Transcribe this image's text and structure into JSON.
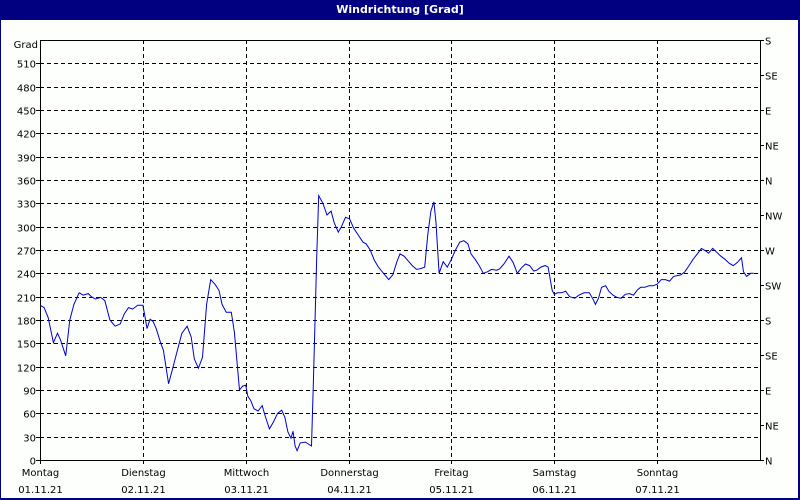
{
  "window": {
    "title": "Windrichtung [Grad]"
  },
  "colors": {
    "frame": "#000080",
    "background": "#fdfffd",
    "line": "#0000cc",
    "grid": "#000000",
    "axis": "#000000"
  },
  "chart_data": {
    "type": "line",
    "title": "Windrichtung [Grad]",
    "ylabel": "Grad",
    "xlabel": "",
    "ylim": [
      0,
      540
    ],
    "y_ticks": [
      0,
      30,
      60,
      90,
      120,
      150,
      180,
      210,
      240,
      270,
      300,
      330,
      360,
      390,
      420,
      450,
      480,
      510
    ],
    "y2_ticks": [
      {
        "value": 0,
        "label": "N"
      },
      {
        "value": 45,
        "label": "NE"
      },
      {
        "value": 90,
        "label": "E"
      },
      {
        "value": 135,
        "label": "SE"
      },
      {
        "value": 180,
        "label": "S"
      },
      {
        "value": 225,
        "label": "SW"
      },
      {
        "value": 270,
        "label": "W"
      },
      {
        "value": 315,
        "label": "NW"
      },
      {
        "value": 360,
        "label": "N"
      },
      {
        "value": 405,
        "label": "NE"
      },
      {
        "value": 450,
        "label": "E"
      },
      {
        "value": 495,
        "label": "SE"
      },
      {
        "value": 540,
        "label": "S"
      }
    ],
    "categories": [
      {
        "day": "Montag",
        "date": "01.11.21"
      },
      {
        "day": "Dienstag",
        "date": "02.11.21"
      },
      {
        "day": "Mittwoch",
        "date": "03.11.21"
      },
      {
        "day": "Donnerstag",
        "date": "04.11.21"
      },
      {
        "day": "Freitag",
        "date": "05.11.21"
      },
      {
        "day": "Samstag",
        "date": "06.11.21"
      },
      {
        "day": "Sonntag",
        "date": "07.11.21"
      }
    ],
    "grid": true,
    "legend": "none",
    "series": [
      {
        "name": "Windrichtung",
        "x_days": "fractional day index from Montag 00:00 (0..7)",
        "points": [
          [
            0.0,
            199
          ],
          [
            0.04,
            196
          ],
          [
            0.08,
            183
          ],
          [
            0.13,
            151
          ],
          [
            0.17,
            163
          ],
          [
            0.2,
            154
          ],
          [
            0.25,
            134
          ],
          [
            0.29,
            180
          ],
          [
            0.33,
            200
          ],
          [
            0.38,
            215
          ],
          [
            0.42,
            212
          ],
          [
            0.47,
            214
          ],
          [
            0.5,
            210
          ],
          [
            0.54,
            207
          ],
          [
            0.59,
            209
          ],
          [
            0.63,
            205
          ],
          [
            0.68,
            180
          ],
          [
            0.73,
            172
          ],
          [
            0.78,
            175
          ],
          [
            0.82,
            188
          ],
          [
            0.86,
            196
          ],
          [
            0.9,
            194
          ],
          [
            0.95,
            199
          ],
          [
            1.0,
            199
          ],
          [
            1.02,
            185
          ],
          [
            1.04,
            169
          ],
          [
            1.07,
            181
          ],
          [
            1.1,
            178
          ],
          [
            1.13,
            169
          ],
          [
            1.17,
            152
          ],
          [
            1.2,
            141
          ],
          [
            1.25,
            98
          ],
          [
            1.29,
            118
          ],
          [
            1.34,
            143
          ],
          [
            1.38,
            163
          ],
          [
            1.43,
            172
          ],
          [
            1.47,
            158
          ],
          [
            1.5,
            130
          ],
          [
            1.54,
            118
          ],
          [
            1.58,
            132
          ],
          [
            1.62,
            200
          ],
          [
            1.66,
            232
          ],
          [
            1.7,
            226
          ],
          [
            1.74,
            218
          ],
          [
            1.77,
            200
          ],
          [
            1.81,
            190
          ],
          [
            1.86,
            190
          ],
          [
            1.89,
            164
          ],
          [
            1.94,
            90
          ],
          [
            1.97,
            95
          ],
          [
            2.0,
            96
          ],
          [
            2.02,
            82
          ],
          [
            2.05,
            76
          ],
          [
            2.08,
            66
          ],
          [
            2.12,
            63
          ],
          [
            2.16,
            70
          ],
          [
            2.19,
            56
          ],
          [
            2.23,
            40
          ],
          [
            2.27,
            49
          ],
          [
            2.31,
            60
          ],
          [
            2.35,
            64
          ],
          [
            2.38,
            55
          ],
          [
            2.41,
            36
          ],
          [
            2.44,
            28
          ],
          [
            2.46,
            37
          ],
          [
            2.48,
            18
          ],
          [
            2.5,
            12
          ],
          [
            2.53,
            22
          ],
          [
            2.58,
            23
          ],
          [
            2.64,
            18
          ],
          [
            2.66,
            110
          ],
          [
            2.69,
            260
          ],
          [
            2.71,
            340
          ],
          [
            2.75,
            330
          ],
          [
            2.79,
            315
          ],
          [
            2.83,
            320
          ],
          [
            2.86,
            305
          ],
          [
            2.9,
            293
          ],
          [
            2.93,
            300
          ],
          [
            2.97,
            312
          ],
          [
            3.01,
            310
          ],
          [
            3.05,
            298
          ],
          [
            3.09,
            290
          ],
          [
            3.14,
            280
          ],
          [
            3.17,
            278
          ],
          [
            3.21,
            270
          ],
          [
            3.25,
            257
          ],
          [
            3.29,
            248
          ],
          [
            3.34,
            240
          ],
          [
            3.39,
            232
          ],
          [
            3.43,
            238
          ],
          [
            3.47,
            255
          ],
          [
            3.5,
            265
          ],
          [
            3.54,
            262
          ],
          [
            3.58,
            256
          ],
          [
            3.62,
            250
          ],
          [
            3.66,
            245
          ],
          [
            3.7,
            246
          ],
          [
            3.74,
            248
          ],
          [
            3.77,
            290
          ],
          [
            3.8,
            320
          ],
          [
            3.83,
            332
          ],
          [
            3.85,
            305
          ],
          [
            3.88,
            240
          ],
          [
            3.92,
            255
          ],
          [
            3.96,
            248
          ],
          [
            4.0,
            258
          ],
          [
            4.04,
            270
          ],
          [
            4.08,
            280
          ],
          [
            4.12,
            282
          ],
          [
            4.16,
            278
          ],
          [
            4.19,
            265
          ],
          [
            4.23,
            258
          ],
          [
            4.27,
            250
          ],
          [
            4.31,
            240
          ],
          [
            4.35,
            242
          ],
          [
            4.39,
            245
          ],
          [
            4.44,
            244
          ],
          [
            4.47,
            246
          ],
          [
            4.51,
            252
          ],
          [
            4.56,
            262
          ],
          [
            4.6,
            254
          ],
          [
            4.64,
            240
          ],
          [
            4.68,
            247
          ],
          [
            4.72,
            252
          ],
          [
            4.76,
            250
          ],
          [
            4.8,
            243
          ],
          [
            4.83,
            244
          ],
          [
            4.87,
            248
          ],
          [
            4.91,
            250
          ],
          [
            4.94,
            248
          ],
          [
            4.98,
            218
          ],
          [
            5.0,
            213
          ],
          [
            5.03,
            215
          ],
          [
            5.07,
            215
          ],
          [
            5.11,
            217
          ],
          [
            5.15,
            210
          ],
          [
            5.2,
            208
          ],
          [
            5.24,
            212
          ],
          [
            5.29,
            215
          ],
          [
            5.34,
            215
          ],
          [
            5.38,
            206
          ],
          [
            5.4,
            200
          ],
          [
            5.43,
            208
          ],
          [
            5.46,
            222
          ],
          [
            5.5,
            224
          ],
          [
            5.53,
            217
          ],
          [
            5.57,
            212
          ],
          [
            5.61,
            209
          ],
          [
            5.65,
            208
          ],
          [
            5.69,
            213
          ],
          [
            5.73,
            214
          ],
          [
            5.77,
            212
          ],
          [
            5.81,
            219
          ],
          [
            5.84,
            222
          ],
          [
            5.88,
            222
          ],
          [
            5.92,
            224
          ],
          [
            5.96,
            224
          ],
          [
            6.0,
            226
          ],
          [
            6.04,
            232
          ],
          [
            6.08,
            232
          ],
          [
            6.12,
            230
          ],
          [
            6.16,
            236
          ],
          [
            6.19,
            237
          ],
          [
            6.23,
            238
          ],
          [
            6.27,
            242
          ],
          [
            6.31,
            250
          ],
          [
            6.35,
            258
          ],
          [
            6.39,
            265
          ],
          [
            6.43,
            272
          ],
          [
            6.47,
            269
          ],
          [
            6.5,
            266
          ],
          [
            6.54,
            272
          ],
          [
            6.58,
            267
          ],
          [
            6.62,
            262
          ],
          [
            6.66,
            258
          ],
          [
            6.7,
            253
          ],
          [
            6.74,
            250
          ],
          [
            6.78,
            254
          ],
          [
            6.82,
            260
          ],
          [
            6.84,
            242
          ],
          [
            6.87,
            236
          ],
          [
            6.91,
            240
          ],
          [
            6.94,
            240
          ]
        ]
      }
    ]
  }
}
